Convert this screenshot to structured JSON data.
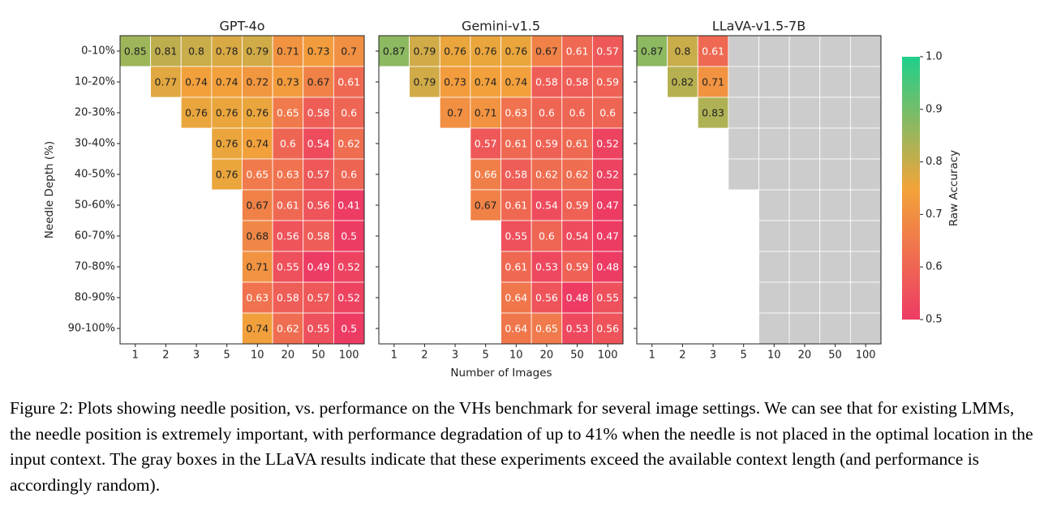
{
  "chart_data": {
    "type": "heatmap",
    "ylabel": "Needle Depth (%)",
    "xlabel": "Number of Images",
    "row_labels": [
      "0-10%",
      "10-20%",
      "20-30%",
      "30-40%",
      "40-50%",
      "50-60%",
      "60-70%",
      "70-80%",
      "80-90%",
      "90-100%"
    ],
    "col_labels": [
      "1",
      "2",
      "3",
      "5",
      "10",
      "20",
      "50",
      "100"
    ],
    "colorbar": {
      "label": "Raw Accuracy",
      "range": [
        0.5,
        1.0
      ],
      "ticks": [
        "0.5",
        "0.6",
        "0.7",
        "0.8",
        "0.9",
        "1.0"
      ],
      "colors": [
        "#ed3b64",
        "#f2a43a",
        "#1fcf8b"
      ]
    },
    "missing_color": "#cccccc",
    "panels": [
      {
        "title": "GPT-4o",
        "values": [
          [
            0.85,
            0.81,
            0.8,
            0.78,
            0.79,
            0.71,
            0.73,
            0.7
          ],
          [
            null,
            0.77,
            0.74,
            0.74,
            0.72,
            0.73,
            0.67,
            0.61
          ],
          [
            null,
            null,
            0.76,
            0.76,
            0.76,
            0.65,
            0.58,
            0.6
          ],
          [
            null,
            null,
            null,
            0.76,
            0.74,
            0.6,
            0.54,
            0.62
          ],
          [
            null,
            null,
            null,
            0.76,
            0.65,
            0.63,
            0.57,
            0.6
          ],
          [
            null,
            null,
            null,
            null,
            0.67,
            0.61,
            0.56,
            0.41
          ],
          [
            null,
            null,
            null,
            null,
            0.68,
            0.56,
            0.58,
            0.5
          ],
          [
            null,
            null,
            null,
            null,
            0.71,
            0.55,
            0.49,
            0.52
          ],
          [
            null,
            null,
            null,
            null,
            0.63,
            0.58,
            0.57,
            0.52
          ],
          [
            null,
            null,
            null,
            null,
            0.74,
            0.62,
            0.55,
            0.5
          ]
        ]
      },
      {
        "title": "Gemini-v1.5",
        "values": [
          [
            0.87,
            0.79,
            0.76,
            0.76,
            0.76,
            0.67,
            0.61,
            0.57
          ],
          [
            null,
            0.79,
            0.73,
            0.74,
            0.74,
            0.58,
            0.58,
            0.59
          ],
          [
            null,
            null,
            0.7,
            0.71,
            0.63,
            0.6,
            0.6,
            0.6
          ],
          [
            null,
            null,
            null,
            0.57,
            0.61,
            0.59,
            0.61,
            0.52
          ],
          [
            null,
            null,
            null,
            0.66,
            0.58,
            0.62,
            0.62,
            0.52
          ],
          [
            null,
            null,
            null,
            0.67,
            0.61,
            0.54,
            0.59,
            0.47
          ],
          [
            null,
            null,
            null,
            null,
            0.55,
            0.6,
            0.54,
            0.47
          ],
          [
            null,
            null,
            null,
            null,
            0.61,
            0.53,
            0.59,
            0.48
          ],
          [
            null,
            null,
            null,
            null,
            0.64,
            0.56,
            0.48,
            0.55
          ],
          [
            null,
            null,
            null,
            null,
            0.64,
            0.65,
            0.53,
            0.56
          ]
        ]
      },
      {
        "title": "LLaVA-v1.5-7B",
        "values": [
          [
            0.87,
            0.8,
            0.61,
            "x",
            "x",
            "x",
            "x",
            "x"
          ],
          [
            null,
            0.82,
            0.71,
            "x",
            "x",
            "x",
            "x",
            "x"
          ],
          [
            null,
            null,
            0.83,
            "x",
            "x",
            "x",
            "x",
            "x"
          ],
          [
            null,
            null,
            null,
            "x",
            "x",
            "x",
            "x",
            "x"
          ],
          [
            null,
            null,
            null,
            "x",
            "x",
            "x",
            "x",
            "x"
          ],
          [
            null,
            null,
            null,
            null,
            "x",
            "x",
            "x",
            "x"
          ],
          [
            null,
            null,
            null,
            null,
            "x",
            "x",
            "x",
            "x"
          ],
          [
            null,
            null,
            null,
            null,
            "x",
            "x",
            "x",
            "x"
          ],
          [
            null,
            null,
            null,
            null,
            "x",
            "x",
            "x",
            "x"
          ],
          [
            null,
            null,
            null,
            null,
            "x",
            "x",
            "x",
            "x"
          ]
        ]
      }
    ]
  },
  "caption": {
    "label": "Figure 2:",
    "text": "Plots showing needle position, vs. performance on the VHs benchmark for several image settings. We can see that for existing LMMs, the needle position is extremely important, with performance degradation of up to 41% when the needle is not placed in the optimal location in the input context. The gray boxes in the LLaVA results indicate that these experiments exceed the available context length (and performance is accordingly random)."
  }
}
